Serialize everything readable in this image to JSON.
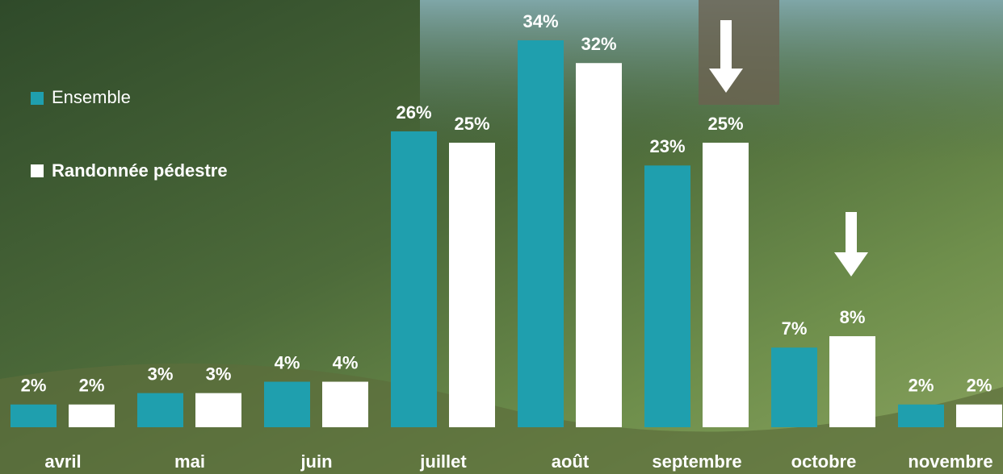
{
  "chart_data": {
    "type": "bar",
    "categories": [
      "avril",
      "mai",
      "juin",
      "juillet",
      "août",
      "septembre",
      "octobre",
      "novembre"
    ],
    "series": [
      {
        "name": "Ensemble",
        "color": "#1f9fae",
        "values": [
          2,
          3,
          4,
          26,
          34,
          23,
          7,
          2
        ],
        "value_labels": [
          "2%",
          "3%",
          "4%",
          "26%",
          "34%",
          "23%",
          "7%",
          "2%"
        ]
      },
      {
        "name": "Randonnée pédestre",
        "color": "#ffffff",
        "values": [
          2,
          3,
          4,
          25,
          32,
          25,
          8,
          2
        ],
        "value_labels": [
          "2%",
          "3%",
          "4%",
          "25%",
          "32%",
          "25%",
          "8%",
          "2%"
        ]
      }
    ],
    "grid": false
  }
}
